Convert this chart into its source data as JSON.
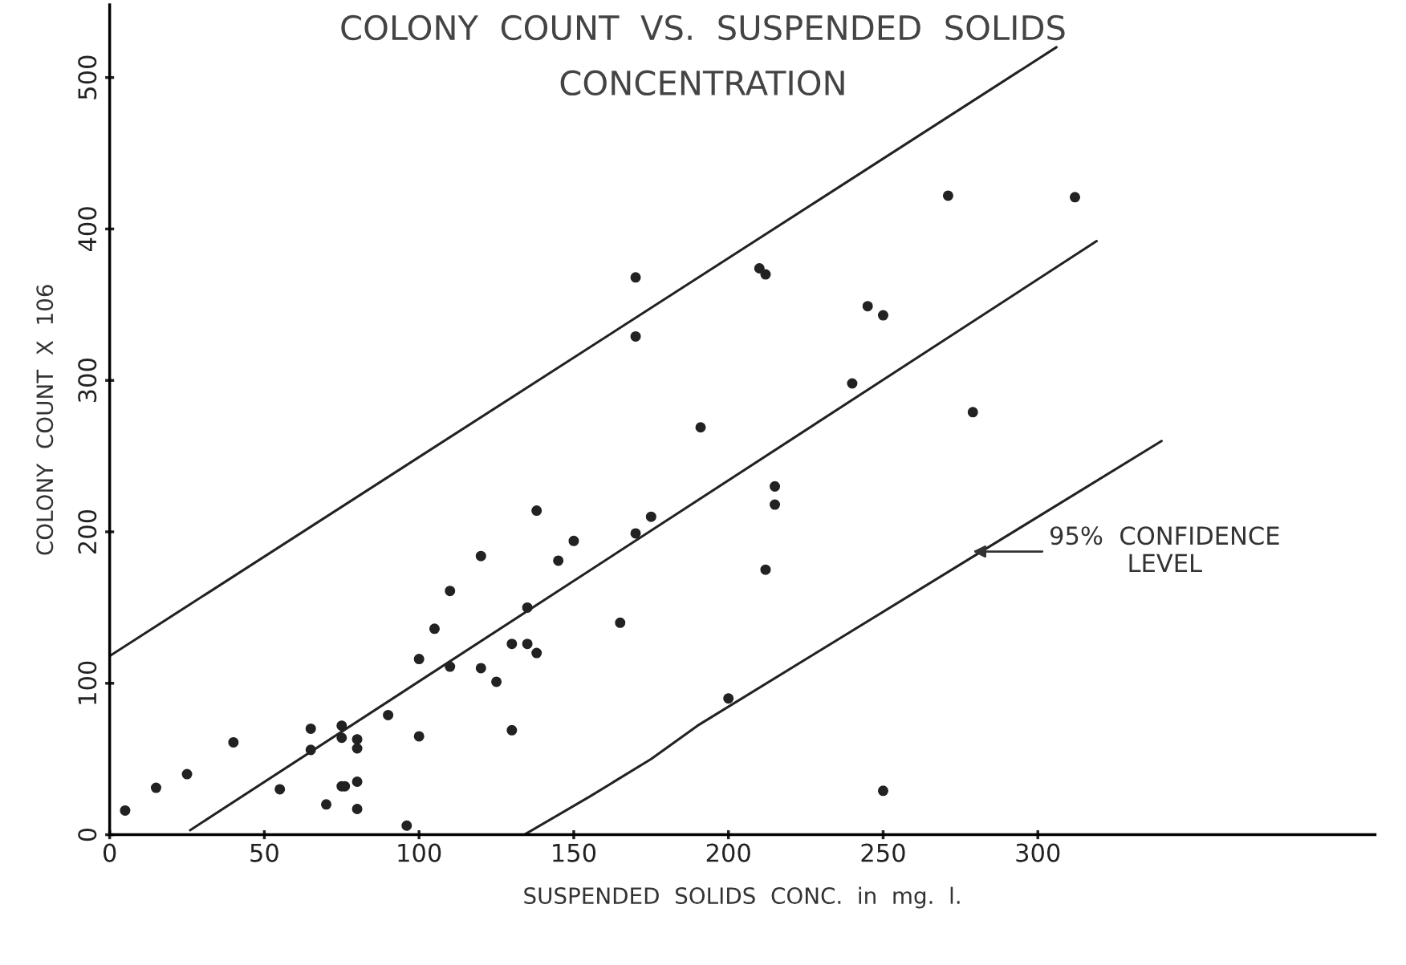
{
  "chart_data": {
    "type": "scatter",
    "title": "COLONY  COUNT  VS.  SUSPENDED  SOLIDS\nCONCENTRATION",
    "xlabel": "SUSPENDED  SOLIDS  CONC.  in  mg.  l.",
    "ylabel": "COLONY  COUNT  X  106",
    "xlim": [
      0,
      409
    ],
    "ylim": [
      0,
      548
    ],
    "xticks": [
      0,
      50,
      100,
      150,
      200,
      250,
      300
    ],
    "yticks": [
      0,
      100,
      200,
      300,
      400,
      500
    ],
    "grid": false,
    "series": [
      {
        "marker": "circle",
        "color": "#222222",
        "x": [
          5,
          15,
          25,
          40,
          55,
          65,
          65,
          70,
          75,
          75,
          75,
          76,
          80,
          80,
          80,
          80,
          90,
          96,
          100,
          100,
          105,
          110,
          110,
          120,
          120,
          125,
          130,
          130,
          135,
          138,
          135,
          138,
          145,
          150,
          165,
          170,
          170,
          170,
          175,
          191,
          200,
          210,
          212,
          212,
          215,
          215,
          240,
          245,
          250,
          250,
          271,
          279,
          312
        ],
        "values": [
          16,
          31,
          40,
          61,
          30,
          70,
          56,
          20,
          72,
          64,
          32,
          32,
          57,
          63,
          35,
          17,
          79,
          6,
          65,
          116,
          136,
          161,
          111,
          110,
          184,
          101,
          126,
          69,
          126,
          120,
          150,
          214,
          181,
          194,
          140,
          368,
          329,
          199,
          210,
          269,
          90,
          374,
          370,
          175,
          230,
          218,
          298,
          349,
          343,
          29,
          422,
          279,
          421
        ]
      },
      {
        "type": "line",
        "color": "#222222",
        "x": [
          0,
          306
        ],
        "values": [
          118,
          520
        ]
      },
      {
        "type": "line",
        "color": "#222222",
        "x": [
          26,
          319
        ],
        "values": [
          3,
          392
        ]
      },
      {
        "type": "line",
        "color": "#222222",
        "x": [
          134,
          155,
          175,
          190,
          340
        ],
        "values": [
          0,
          25,
          50,
          72,
          260
        ]
      }
    ],
    "annotations": [
      {
        "text": "95%  CONFIDENCE\nLEVEL",
        "x": 279,
        "y": 187
      }
    ]
  }
}
